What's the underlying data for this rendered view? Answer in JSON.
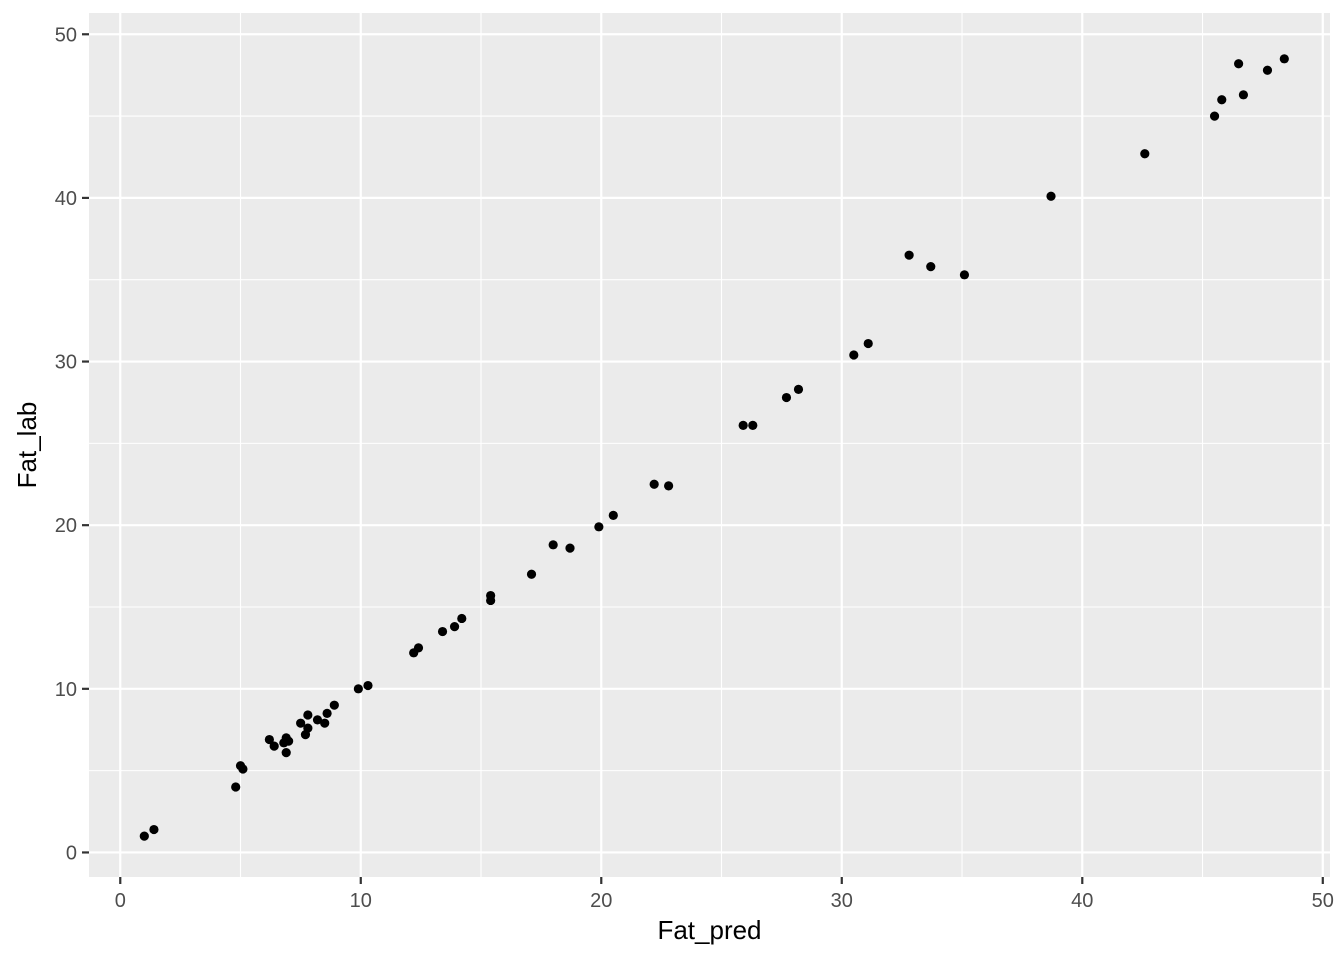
{
  "chart_data": {
    "type": "scatter",
    "xlabel": "Fat_pred",
    "ylabel": "Fat_lab",
    "xlim": [
      -1.3,
      50.3
    ],
    "ylim": [
      -1.5,
      51.3
    ],
    "x_ticks": [
      0,
      10,
      20,
      30,
      40,
      50
    ],
    "y_ticks": [
      0,
      10,
      20,
      30,
      40,
      50
    ],
    "x_tick_labels": [
      "0",
      "10",
      "20",
      "30",
      "40",
      "50"
    ],
    "y_tick_labels": [
      "0",
      "10",
      "20",
      "30",
      "40",
      "50"
    ],
    "grid": true,
    "legend": "none",
    "colors": {
      "panel": "#ebebeb",
      "grid": "#ffffff",
      "point": "#000000",
      "tick": "#333333"
    },
    "series": [
      {
        "points": [
          [
            1.0,
            1.0
          ],
          [
            1.4,
            1.4
          ],
          [
            4.8,
            4.0
          ],
          [
            5.0,
            5.3
          ],
          [
            5.1,
            5.1
          ],
          [
            6.2,
            6.9
          ],
          [
            6.4,
            6.5
          ],
          [
            6.8,
            6.7
          ],
          [
            6.9,
            7.0
          ],
          [
            7.0,
            6.8
          ],
          [
            6.9,
            6.1
          ],
          [
            7.5,
            7.9
          ],
          [
            7.7,
            7.2
          ],
          [
            7.8,
            7.6
          ],
          [
            7.8,
            8.4
          ],
          [
            8.2,
            8.1
          ],
          [
            8.5,
            7.9
          ],
          [
            8.6,
            8.5
          ],
          [
            8.9,
            9.0
          ],
          [
            9.9,
            10.0
          ],
          [
            10.3,
            10.2
          ],
          [
            12.2,
            12.2
          ],
          [
            12.4,
            12.5
          ],
          [
            13.4,
            13.5
          ],
          [
            13.9,
            13.8
          ],
          [
            14.2,
            14.3
          ],
          [
            15.4,
            15.7
          ],
          [
            15.4,
            15.4
          ],
          [
            17.1,
            17.0
          ],
          [
            18.0,
            18.8
          ],
          [
            18.7,
            18.6
          ],
          [
            19.9,
            19.9
          ],
          [
            20.5,
            20.6
          ],
          [
            22.2,
            22.5
          ],
          [
            22.8,
            22.4
          ],
          [
            25.9,
            26.1
          ],
          [
            26.3,
            26.1
          ],
          [
            27.7,
            27.8
          ],
          [
            28.2,
            28.3
          ],
          [
            30.5,
            30.4
          ],
          [
            31.1,
            31.1
          ],
          [
            32.8,
            36.5
          ],
          [
            33.7,
            35.8
          ],
          [
            35.1,
            35.3
          ],
          [
            38.7,
            40.1
          ],
          [
            42.6,
            42.7
          ],
          [
            45.5,
            45.0
          ],
          [
            45.8,
            46.0
          ],
          [
            46.5,
            48.2
          ],
          [
            46.7,
            46.3
          ],
          [
            47.7,
            47.8
          ],
          [
            48.4,
            48.5
          ]
        ]
      }
    ]
  }
}
